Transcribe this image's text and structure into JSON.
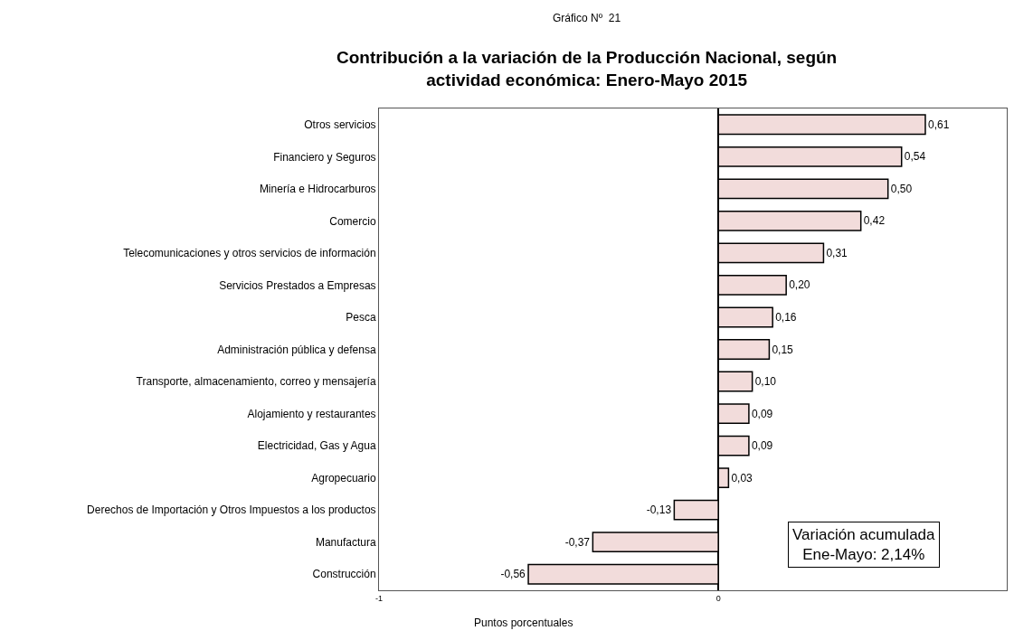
{
  "chart_data": {
    "type": "bar",
    "orientation": "horizontal",
    "subtitle": "Gráfico Nº  21",
    "title": "Contribución a la variación de la Producción Nacional, según\nactividad económica: Enero-Mayo 2015",
    "xlabel": "Puntos porcentuales",
    "categories": [
      "Otros servicios",
      "Financiero y Seguros",
      "Minería e Hidrocarburos",
      "Comercio",
      "Telecomunicaciones y otros servicios de información",
      "Servicios Prestados a Empresas",
      "Pesca",
      "Administración pública y defensa",
      "Transporte, almacenamiento, correo y mensajería",
      "Alojamiento y restaurantes",
      "Electricidad, Gas y Agua",
      "Agropecuario",
      "Derechos de Importación y Otros Impuestos a los productos",
      "Manufactura",
      "Construcción"
    ],
    "values": [
      0.61,
      0.54,
      0.5,
      0.42,
      0.31,
      0.2,
      0.16,
      0.15,
      0.1,
      0.09,
      0.09,
      0.03,
      -0.13,
      -0.37,
      -0.56
    ],
    "value_labels": [
      "0,61",
      "0,54",
      "0,50",
      "0,42",
      "0,31",
      "0,20",
      "0,16",
      "0,15",
      "0,10",
      "0,09",
      "0,09",
      "0,03",
      "-0,13",
      "-0,37",
      "-0,56"
    ],
    "color": "#f2dcdb",
    "xlim": [
      -1,
      0.85
    ],
    "xticks": [
      -1,
      0
    ],
    "legend": false,
    "annotations": [
      "Variación acumulada\nEne-Mayo: 2,14%"
    ]
  }
}
